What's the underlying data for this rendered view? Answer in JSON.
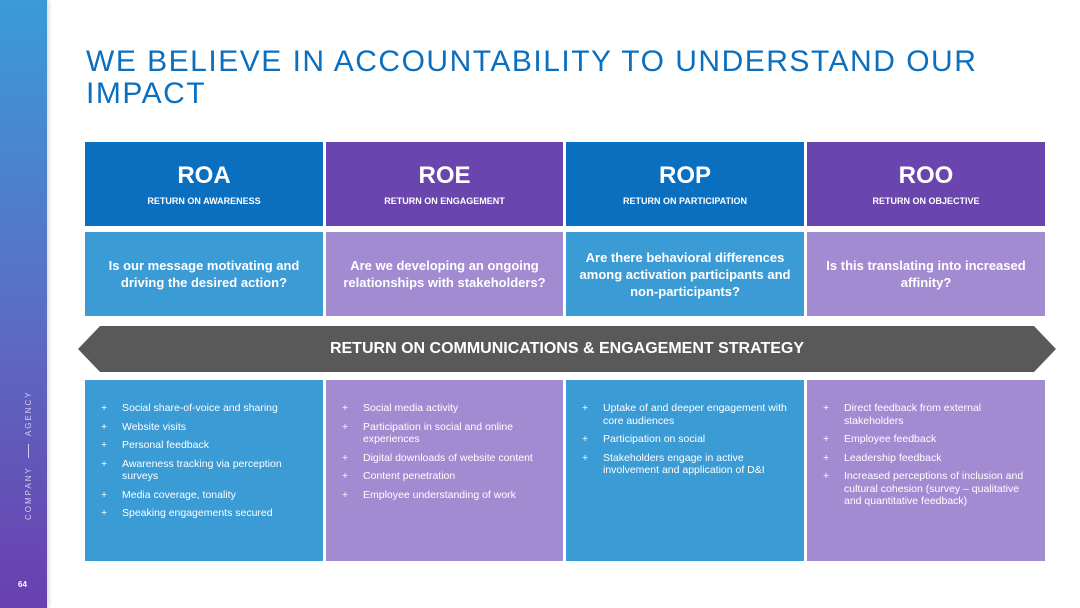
{
  "slide": {
    "title": "WE BELIEVE IN ACCOUNTABILITY TO UNDERSTAND OUR IMPACT",
    "brand_left": "COMPANY",
    "brand_right": "AGENCY",
    "page_number": "64"
  },
  "colors": {
    "dark_blue": "#0b6fc0",
    "dark_purple": "#6a45ad",
    "light_blue": "#3a9bd5",
    "light_purple": "#a38bd2",
    "arrow_gray": "#595959"
  },
  "columns": [
    {
      "abbr": "ROA",
      "subtitle": "RETURN ON AWARENESS",
      "question": "Is our message motivating and driving the desired action?",
      "items": [
        "Social share-of-voice and sharing",
        "Website visits",
        "Personal feedback",
        "Awareness tracking via perception surveys",
        "Media coverage, tonality",
        "Speaking engagements secured"
      ]
    },
    {
      "abbr": "ROE",
      "subtitle": "RETURN ON ENGAGEMENT",
      "question": "Are we developing an ongoing relationships with stakeholders?",
      "items": [
        "Social media activity",
        "Participation in social and online experiences",
        "Digital downloads of website content",
        "Content penetration",
        "Employee understanding of work"
      ]
    },
    {
      "abbr": "ROP",
      "subtitle": "RETURN ON PARTICIPATION",
      "question": "Are there behavioral differences among activation participants and non-participants?",
      "items": [
        "Uptake of and deeper engagement with core audiences",
        "Participation on social",
        "Stakeholders engage in active involvement and application of D&I"
      ]
    },
    {
      "abbr": "ROO",
      "subtitle": "RETURN ON OBJECTIVE",
      "question": "Is this translating into increased affinity?",
      "items": [
        "Direct feedback from external stakeholders",
        "Employee feedback",
        "Leadership feedback",
        "Increased perceptions of inclusion and cultural cohesion (survey – qualitative and quantitative feedback)"
      ]
    }
  ],
  "strategy_banner": "RETURN ON COMMUNICATIONS & ENGAGEMENT STRATEGY",
  "bullet_symbol": "+"
}
